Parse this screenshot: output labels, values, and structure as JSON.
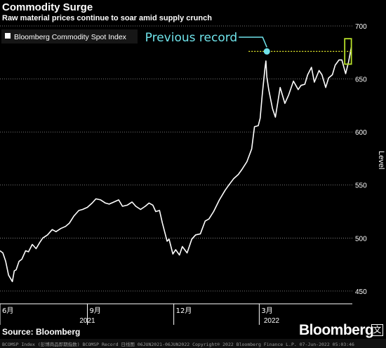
{
  "header": {
    "title": "Commodity Surge",
    "subtitle": "Raw material prices continue to soar amid supply crunch"
  },
  "footer": {
    "source": "Source: Bloomberg",
    "logo": "Bloomberg",
    "logo_badge": "文",
    "terminal_text": "BCOMSP Index (彭博商品即期指数) BCOMSP Record  日线图 06JUN2021-06JUN2022 Copyright® 2022 Bloomberg Finance L.P.  07-Jun-2022 05:03:46"
  },
  "colors": {
    "background": "#000000",
    "series": "#ffffff",
    "gridline": "#9a9a9a",
    "record_marker": "#6fe3ea",
    "record_line": "#d9e02a",
    "highlight_box": "#b8e02a"
  },
  "chart_data": {
    "type": "line",
    "title": "Commodity Surge",
    "subtitle": "Raw material prices continue to soar amid supply crunch",
    "xlabel": "",
    "ylabel": "Level",
    "ylim": [
      438,
      702
    ],
    "yticks": [
      450,
      500,
      550,
      600,
      650,
      700
    ],
    "xlim": [
      "2021-06-01",
      "2022-06-07"
    ],
    "xticks": [
      {
        "label": "6月",
        "date": "2021-06-01"
      },
      {
        "label": "9月",
        "date": "2021-09-01"
      },
      {
        "label": "12月",
        "date": "2021-12-01"
      },
      {
        "label": "3月",
        "date": "2022-03-01"
      }
    ],
    "year_labels": [
      {
        "label": "2021",
        "date": "2021-09-01"
      },
      {
        "label": "2022",
        "date": "2022-03-14"
      }
    ],
    "legend": {
      "position": "top-left",
      "entries": [
        "Bloomberg Commodity Spot Index"
      ]
    },
    "annotation": {
      "text": "Previous record",
      "date": "2022-03-09",
      "value": 676
    },
    "record_level": 676,
    "highlight_range": {
      "start": "2022-05-30",
      "end": "2022-06-06",
      "low": 664,
      "high": 688
    },
    "grid": {
      "horizontal": true,
      "style": "dotted",
      "y_values": [
        450,
        500,
        550,
        600,
        650,
        700
      ]
    },
    "series": [
      {
        "name": "Bloomberg Commodity Spot Index",
        "x": [
          "2021-06-01",
          "2021-06-04",
          "2021-06-07",
          "2021-06-10",
          "2021-06-14",
          "2021-06-16",
          "2021-06-18",
          "2021-06-21",
          "2021-06-24",
          "2021-06-28",
          "2021-07-01",
          "2021-07-05",
          "2021-07-09",
          "2021-07-13",
          "2021-07-16",
          "2021-07-21",
          "2021-07-26",
          "2021-07-30",
          "2021-08-04",
          "2021-08-09",
          "2021-08-13",
          "2021-08-18",
          "2021-08-23",
          "2021-08-27",
          "2021-09-01",
          "2021-09-06",
          "2021-09-10",
          "2021-09-15",
          "2021-09-20",
          "2021-09-24",
          "2021-09-29",
          "2021-10-04",
          "2021-10-08",
          "2021-10-13",
          "2021-10-18",
          "2021-10-22",
          "2021-10-27",
          "2021-11-01",
          "2021-11-05",
          "2021-11-09",
          "2021-11-12",
          "2021-11-16",
          "2021-11-19",
          "2021-11-24",
          "2021-11-26",
          "2021-11-30",
          "2021-12-03",
          "2021-12-07",
          "2021-12-10",
          "2021-12-15",
          "2021-12-20",
          "2021-12-24",
          "2021-12-29",
          "2022-01-03",
          "2022-01-07",
          "2022-01-12",
          "2022-01-18",
          "2022-01-24",
          "2022-01-28",
          "2022-02-02",
          "2022-02-07",
          "2022-02-11",
          "2022-02-16",
          "2022-02-21",
          "2022-02-24",
          "2022-02-28",
          "2022-03-02",
          "2022-03-04",
          "2022-03-07",
          "2022-03-08",
          "2022-03-09",
          "2022-03-11",
          "2022-03-15",
          "2022-03-18",
          "2022-03-23",
          "2022-03-28",
          "2022-04-01",
          "2022-04-06",
          "2022-04-11",
          "2022-04-14",
          "2022-04-18",
          "2022-04-21",
          "2022-04-25",
          "2022-04-28",
          "2022-05-03",
          "2022-05-06",
          "2022-05-10",
          "2022-05-13",
          "2022-05-17",
          "2022-05-20",
          "2022-05-24",
          "2022-05-27",
          "2022-05-31",
          "2022-06-03",
          "2022-06-06"
        ],
        "values": [
          488,
          486,
          478,
          465,
          459,
          469,
          470,
          478,
          480,
          488,
          487,
          494,
          490,
          496,
          500,
          503,
          508,
          506,
          509,
          511,
          514,
          521,
          526,
          527,
          529,
          533,
          537,
          536,
          533,
          532,
          534,
          536,
          530,
          531,
          534,
          530,
          527,
          530,
          533,
          531,
          525,
          526,
          514,
          497,
          499,
          485,
          489,
          484,
          492,
          486,
          499,
          503,
          504,
          516,
          518,
          525,
          536,
          545,
          550,
          556,
          560,
          565,
          572,
          584,
          605,
          606,
          613,
          634,
          660,
          667,
          652,
          640,
          622,
          614,
          642,
          627,
          635,
          648,
          640,
          644,
          645,
          654,
          661,
          647,
          658,
          654,
          642,
          651,
          654,
          663,
          668,
          668,
          655,
          666,
          680
        ]
      }
    ]
  }
}
